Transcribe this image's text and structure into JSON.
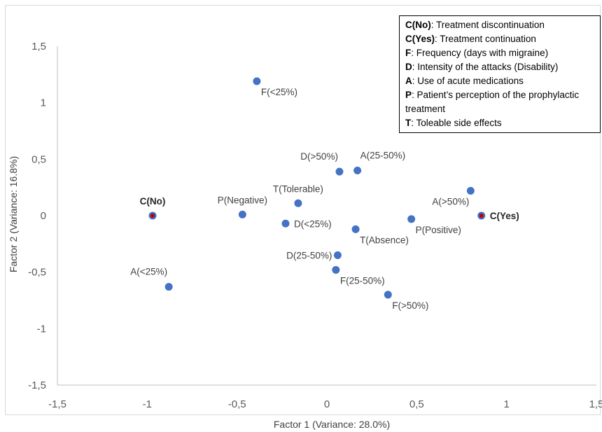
{
  "chart_data": {
    "type": "scatter",
    "title": "",
    "xlabel": "Factor 1 (Variance: 28.0%)",
    "ylabel": "Factor 2 (Variance: 16.8%)",
    "xlim": [
      -1.5,
      1.5
    ],
    "ylim": [
      -1.5,
      1.5
    ],
    "x_ticks": [
      "-1,5",
      "-1",
      "-0,5",
      "0",
      "0,5",
      "1",
      "1,5"
    ],
    "y_ticks": [
      "1,5",
      "1",
      "0,5",
      "0",
      "-0,5",
      "-1",
      "-1,5"
    ],
    "x_tick_values": [
      -1.5,
      -1,
      -0.5,
      0,
      0.5,
      1,
      1.5
    ],
    "y_tick_values": [
      1.5,
      1,
      0.5,
      0,
      -0.5,
      -1,
      -1.5
    ],
    "grid": false,
    "colors": {
      "point": "#4472c4",
      "highlight": "#c00000",
      "axis": "#bfbfbf"
    },
    "points": [
      {
        "label": "C(No)",
        "x": -0.97,
        "y": 0.0,
        "bold": true,
        "highlight": true,
        "label_pos": "above"
      },
      {
        "label": "C(Yes)",
        "x": 0.86,
        "y": 0.0,
        "bold": true,
        "highlight": true,
        "label_pos": "right"
      },
      {
        "label": "F(<25%)",
        "x": -0.39,
        "y": 1.19,
        "label_pos": "below-right"
      },
      {
        "label": "D(>50%)",
        "x": 0.07,
        "y": 0.39,
        "label_pos": "above-left"
      },
      {
        "label": "A(25-50%)",
        "x": 0.17,
        "y": 0.4,
        "label_pos": "above-right"
      },
      {
        "label": "T(Tolerable)",
        "x": -0.16,
        "y": 0.11,
        "label_pos": "above"
      },
      {
        "label": "A(>50%)",
        "x": 0.8,
        "y": 0.22,
        "label_pos": "below-left"
      },
      {
        "label": "P(Negative)",
        "x": -0.47,
        "y": 0.01,
        "label_pos": "above"
      },
      {
        "label": "D(<25%)",
        "x": -0.23,
        "y": -0.07,
        "label_pos": "right"
      },
      {
        "label": "P(Positive)",
        "x": 0.47,
        "y": -0.03,
        "label_pos": "below-right"
      },
      {
        "label": "T(Absence)",
        "x": 0.16,
        "y": -0.12,
        "label_pos": "below-right"
      },
      {
        "label": "D(25-50%)",
        "x": 0.06,
        "y": -0.35,
        "label_pos": "left"
      },
      {
        "label": "F(25-50%)",
        "x": 0.05,
        "y": -0.48,
        "label_pos": "below-right"
      },
      {
        "label": "A(<25%)",
        "x": -0.88,
        "y": -0.63,
        "label_pos": "above-left"
      },
      {
        "label": "F(>50%)",
        "x": 0.34,
        "y": -0.7,
        "label_pos": "below-right"
      }
    ]
  },
  "legend": {
    "entries": [
      {
        "key": "C(No)",
        "text": ": Treatment discontinuation"
      },
      {
        "key": "C(Yes)",
        "text": ": Treatment continuation"
      },
      {
        "key": "F",
        "text": ": Frequency (days with migraine)"
      },
      {
        "key": "D",
        "text": ": Intensity of the attacks (Disability)"
      },
      {
        "key": "A",
        "text": ": Use of acute medications"
      },
      {
        "key": "P",
        "text": ": Patient’s perception of the prophylactic treatment"
      },
      {
        "key": "T",
        "text": ": Toleable side effects"
      }
    ]
  }
}
